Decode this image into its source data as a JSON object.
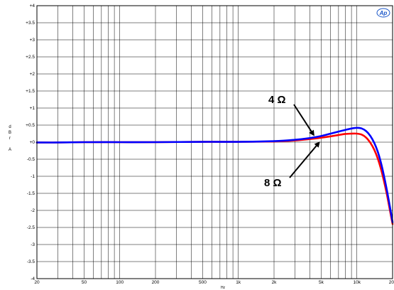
{
  "chart_data": {
    "type": "line",
    "title": "",
    "xlabel": "Hz",
    "ylabel": [
      "d",
      "B",
      "r",
      "",
      "A"
    ],
    "x_scale": "log",
    "xlim": [
      20,
      20000
    ],
    "ylim": [
      -4,
      4
    ],
    "x_ticks": [
      {
        "value": 20,
        "label": "20"
      },
      {
        "value": 50,
        "label": "50"
      },
      {
        "value": 100,
        "label": "100"
      },
      {
        "value": 200,
        "label": "200"
      },
      {
        "value": 500,
        "label": "500"
      },
      {
        "value": 1000,
        "label": "1k"
      },
      {
        "value": 2000,
        "label": "2k"
      },
      {
        "value": 5000,
        "label": "5k"
      },
      {
        "value": 10000,
        "label": "10k"
      },
      {
        "value": 20000,
        "label": "20k"
      }
    ],
    "y_ticks": [
      {
        "value": 4,
        "label": "+4"
      },
      {
        "value": 3.5,
        "label": "+3.5"
      },
      {
        "value": 3,
        "label": "+3"
      },
      {
        "value": 2.5,
        "label": "+2.5"
      },
      {
        "value": 2,
        "label": "+2"
      },
      {
        "value": 1.5,
        "label": "+1.5"
      },
      {
        "value": 1,
        "label": "+1"
      },
      {
        "value": 0.5,
        "label": "+0.5"
      },
      {
        "value": 0,
        "label": "+0"
      },
      {
        "value": -0.5,
        "label": "-0.5"
      },
      {
        "value": -1,
        "label": "-1"
      },
      {
        "value": -1.5,
        "label": "-1.5"
      },
      {
        "value": -2,
        "label": "-2"
      },
      {
        "value": -2.5,
        "label": "-2.5"
      },
      {
        "value": -3,
        "label": "-3"
      },
      {
        "value": -3.5,
        "label": "-3.5"
      },
      {
        "value": -4,
        "label": "-4"
      }
    ],
    "grid": true,
    "series": [
      {
        "name": "8 Ω",
        "color": "#ff0000",
        "x": [
          20,
          30,
          50,
          100,
          200,
          500,
          1000,
          2000,
          3000,
          4000,
          5000,
          6000,
          7000,
          8000,
          9000,
          10000,
          11000,
          12000,
          13000,
          14000,
          15000,
          16000,
          17000,
          18000,
          19000,
          20000
        ],
        "y": [
          -0.01,
          -0.01,
          0.0,
          0.0,
          0.0,
          0.01,
          0.01,
          0.02,
          0.05,
          0.09,
          0.13,
          0.17,
          0.21,
          0.24,
          0.25,
          0.25,
          0.22,
          0.13,
          -0.02,
          -0.22,
          -0.48,
          -0.8,
          -1.17,
          -1.57,
          -2.0,
          -2.4
        ]
      },
      {
        "name": "4 Ω",
        "color": "#0000ff",
        "x": [
          20,
          30,
          50,
          100,
          200,
          500,
          1000,
          2000,
          3000,
          4000,
          5000,
          6000,
          7000,
          8000,
          9000,
          10000,
          11000,
          12000,
          13000,
          14000,
          15000,
          16000,
          17000,
          18000,
          19000,
          20000
        ],
        "y": [
          -0.01,
          -0.01,
          0.0,
          0.0,
          0.0,
          0.01,
          0.01,
          0.03,
          0.07,
          0.12,
          0.18,
          0.25,
          0.31,
          0.36,
          0.4,
          0.42,
          0.4,
          0.32,
          0.18,
          -0.02,
          -0.28,
          -0.62,
          -1.02,
          -1.45,
          -1.9,
          -2.35
        ]
      }
    ],
    "annotations": [
      {
        "text": "4 Ω",
        "points_to_series": "4 Ω",
        "x": 4500,
        "y": 0.15
      },
      {
        "text": "8 Ω",
        "points_to_series": "8 Ω",
        "x": 5000,
        "y": 0.05
      }
    ],
    "logo": {
      "text": "Ap",
      "color": "#1a56c8"
    }
  }
}
